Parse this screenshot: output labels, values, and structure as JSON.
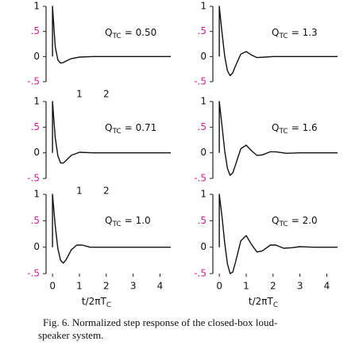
{
  "chart_data": [
    {
      "type": "line",
      "annotation": {
        "symbol": "Q",
        "subscript": "TC",
        "value": "= 0.50"
      },
      "x": [
        0,
        0,
        0.1,
        0.2,
        0.3,
        0.4,
        0.5,
        0.7,
        1.0,
        1.5,
        4.4
      ],
      "values": [
        0,
        1,
        0.2,
        -0.07,
        -0.13,
        -0.12,
        -0.09,
        -0.04,
        -0.01,
        0,
        0
      ],
      "color": "#111111",
      "xlim": [
        -0.3,
        4.4
      ],
      "ylim": [
        -0.5,
        1
      ],
      "yticks": [
        1,
        {
          "value": 0.5,
          "label": ".5",
          "color": "#d0209a"
        },
        0,
        {
          "value": -0.5,
          "label": "-.5",
          "color": "#d0209a"
        }
      ],
      "xticks": [
        1,
        2
      ]
    },
    {
      "type": "line",
      "annotation": {
        "symbol": "Q",
        "subscript": "TC",
        "value": "= 1.3"
      },
      "x": [
        0,
        0,
        0.1,
        0.2,
        0.3,
        0.4,
        0.5,
        0.6,
        0.8,
        1.0,
        1.2,
        1.4,
        1.7,
        2.0,
        4.4
      ],
      "values": [
        0,
        1,
        0.48,
        0.01,
        -0.28,
        -0.38,
        -0.32,
        -0.19,
        0.05,
        0.1,
        0.03,
        -0.02,
        -0.01,
        0,
        0
      ],
      "color": "#111111",
      "xlim": [
        -0.3,
        4.4
      ],
      "ylim": [
        -0.5,
        1
      ],
      "yticks": [
        1,
        {
          "value": 0.5,
          "label": ".5",
          "color": "#d0209a"
        },
        0,
        {
          "value": -0.5,
          "label": "-.5",
          "color": "#d0209a"
        }
      ]
    },
    {
      "type": "line",
      "annotation": {
        "symbol": "Q",
        "subscript": "TC",
        "value": "= 0.71"
      },
      "x": [
        0,
        0,
        0.1,
        0.2,
        0.3,
        0.4,
        0.5,
        0.7,
        1.0,
        1.5,
        4.4
      ],
      "values": [
        0,
        1,
        0.3,
        -0.06,
        -0.2,
        -0.2,
        -0.15,
        -0.05,
        0.01,
        0,
        0
      ],
      "color": "#111111",
      "xlim": [
        -0.3,
        4.4
      ],
      "ylim": [
        -0.5,
        1
      ],
      "yticks": [
        1,
        {
          "value": 0.5,
          "label": ".5",
          "color": "#d0209a"
        },
        0,
        {
          "value": -0.5,
          "label": "-.5",
          "color": "#d0209a"
        }
      ],
      "xticks": [
        1,
        2
      ]
    },
    {
      "type": "line",
      "annotation": {
        "symbol": "Q",
        "subscript": "TC",
        "value": "= 1.6"
      },
      "x": [
        0,
        0,
        0.1,
        0.2,
        0.3,
        0.4,
        0.5,
        0.6,
        0.8,
        1.0,
        1.2,
        1.4,
        1.6,
        1.9,
        2.1,
        2.5,
        3,
        4.4
      ],
      "values": [
        0,
        1,
        0.53,
        0.04,
        -0.3,
        -0.44,
        -0.39,
        -0.24,
        0.08,
        0.15,
        0.04,
        -0.05,
        -0.04,
        0.02,
        0.02,
        -0.01,
        0,
        0
      ],
      "color": "#111111",
      "xlim": [
        -0.3,
        4.4
      ],
      "ylim": [
        -0.5,
        1
      ],
      "yticks": [
        1,
        {
          "value": 0.5,
          "label": ".5",
          "color": "#d0209a"
        },
        0,
        {
          "value": -0.5,
          "label": "-.5",
          "color": "#d0209a"
        }
      ]
    },
    {
      "type": "line",
      "annotation": {
        "symbol": "Q",
        "subscript": "TC",
        "value": "= 1.0"
      },
      "x": [
        0,
        0,
        0.1,
        0.2,
        0.3,
        0.4,
        0.5,
        0.7,
        0.9,
        1.1,
        1.4,
        2,
        4.4
      ],
      "values": [
        0,
        1,
        0.41,
        -0.03,
        -0.25,
        -0.3,
        -0.24,
        -0.05,
        0.04,
        0.04,
        0,
        0,
        0
      ],
      "color": "#111111",
      "xlim": [
        -0.3,
        4.4
      ],
      "ylim": [
        -0.5,
        1
      ],
      "yticks": [
        1,
        {
          "value": 0.5,
          "label": ".5",
          "color": "#d0209a"
        },
        0,
        {
          "value": -0.5,
          "label": "-.5",
          "color": "#d0209a"
        }
      ],
      "xticks": [
        0,
        1,
        2,
        3,
        4
      ],
      "xlabel": {
        "text": "t/2πT",
        "subscript": "C"
      }
    },
    {
      "type": "line",
      "annotation": {
        "symbol": "Q",
        "subscript": "TC",
        "value": "= 2.0"
      },
      "x": [
        0,
        0,
        0.1,
        0.2,
        0.3,
        0.4,
        0.5,
        0.6,
        0.8,
        1.0,
        1.2,
        1.4,
        1.6,
        1.9,
        2.1,
        2.4,
        2.7,
        3.0,
        3.5,
        4.4
      ],
      "values": [
        0,
        1,
        0.58,
        0.08,
        -0.31,
        -0.5,
        -0.47,
        -0.29,
        0.12,
        0.22,
        0.05,
        -0.09,
        -0.07,
        0.04,
        0.04,
        -0.02,
        -0.01,
        0.01,
        0,
        0
      ],
      "color": "#111111",
      "xlim": [
        -0.3,
        4.4
      ],
      "ylim": [
        -0.5,
        1
      ],
      "yticks": [
        1,
        {
          "value": 0.5,
          "label": ".5",
          "color": "#d0209a"
        },
        0,
        {
          "value": -0.5,
          "label": "-.5",
          "color": "#d0209a"
        }
      ],
      "xticks": [
        0,
        1,
        2,
        3,
        4
      ],
      "xlabel": {
        "text": "t/2πT",
        "subscript": "C"
      }
    }
  ],
  "caption": [
    "Fig. 6. Normalized step response of the closed-box loud-",
    "speaker system."
  ]
}
